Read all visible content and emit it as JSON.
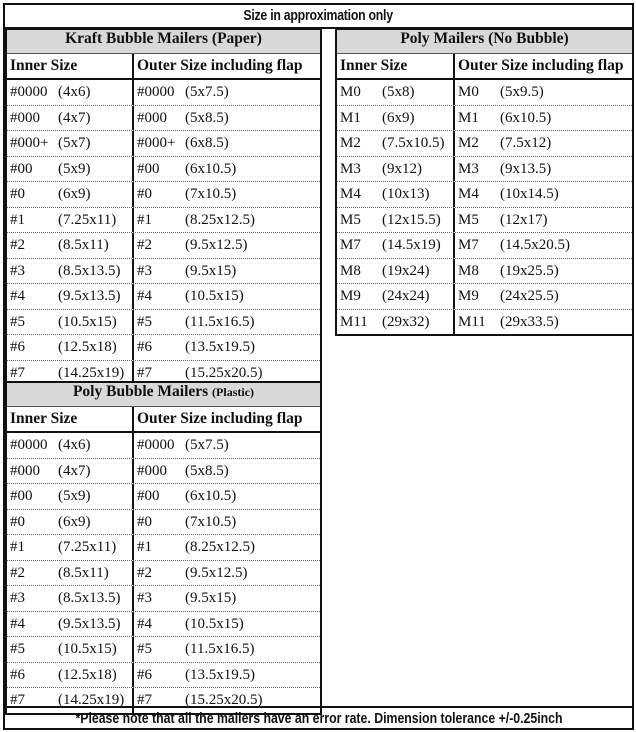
{
  "title": "Size in approximation only",
  "footer": "*Please note that all the mailers have an error rate. Dimension tolerance +/-0.25inch",
  "kraft": {
    "title": "Kraft Bubble Mailers (Paper)",
    "title_note": "",
    "inner_header": "Inner Size",
    "outer_header": "Outer Size including flap",
    "rows": [
      {
        "inner_code": "#0000",
        "inner_dim": "(4x6)",
        "outer_code": "#0000",
        "outer_dim": "(5x7.5)"
      },
      {
        "inner_code": "#000",
        "inner_dim": "(4x7)",
        "outer_code": "#000",
        "outer_dim": "(5x8.5)"
      },
      {
        "inner_code": "#000+",
        "inner_dim": "(5x7)",
        "outer_code": "#000+",
        "outer_dim": "(6x8.5)"
      },
      {
        "inner_code": "#00",
        "inner_dim": "(5x9)",
        "outer_code": "#00",
        "outer_dim": "(6x10.5)"
      },
      {
        "inner_code": "#0",
        "inner_dim": "(6x9)",
        "outer_code": "#0",
        "outer_dim": "(7x10.5)"
      },
      {
        "inner_code": "#1",
        "inner_dim": "(7.25x11)",
        "outer_code": "#1",
        "outer_dim": "(8.25x12.5)"
      },
      {
        "inner_code": "#2",
        "inner_dim": "(8.5x11)",
        "outer_code": "#2",
        "outer_dim": "(9.5x12.5)"
      },
      {
        "inner_code": "#3",
        "inner_dim": "(8.5x13.5)",
        "outer_code": "#3",
        "outer_dim": "(9.5x15)"
      },
      {
        "inner_code": "#4",
        "inner_dim": "(9.5x13.5)",
        "outer_code": "#4",
        "outer_dim": "(10.5x15)"
      },
      {
        "inner_code": "#5",
        "inner_dim": "(10.5x15)",
        "outer_code": "#5",
        "outer_dim": "(11.5x16.5)"
      },
      {
        "inner_code": "#6",
        "inner_dim": "(12.5x18)",
        "outer_code": "#6",
        "outer_dim": "(13.5x19.5)"
      },
      {
        "inner_code": "#7",
        "inner_dim": "(14.25x19)",
        "outer_code": "#7",
        "outer_dim": "(15.25x20.5)"
      }
    ]
  },
  "poly": {
    "title": "Poly Mailers (No Bubble)",
    "title_note": "",
    "inner_header": "Inner Size",
    "outer_header": "Outer Size including flap",
    "rows": [
      {
        "inner_code": "M0",
        "inner_dim": "(5x8)",
        "outer_code": "M0",
        "outer_dim": "(5x9.5)"
      },
      {
        "inner_code": "M1",
        "inner_dim": "(6x9)",
        "outer_code": "M1",
        "outer_dim": "(6x10.5)"
      },
      {
        "inner_code": "M2",
        "inner_dim": "(7.5x10.5)",
        "outer_code": "M2",
        "outer_dim": "(7.5x12)"
      },
      {
        "inner_code": "M3",
        "inner_dim": "(9x12)",
        "outer_code": "M3",
        "outer_dim": "(9x13.5)"
      },
      {
        "inner_code": "M4",
        "inner_dim": "(10x13)",
        "outer_code": "M4",
        "outer_dim": "(10x14.5)"
      },
      {
        "inner_code": "M5",
        "inner_dim": "(12x15.5)",
        "outer_code": "M5",
        "outer_dim": "(12x17)"
      },
      {
        "inner_code": "M7",
        "inner_dim": "(14.5x19)",
        "outer_code": "M7",
        "outer_dim": "(14.5x20.5)"
      },
      {
        "inner_code": "M8",
        "inner_dim": "(19x24)",
        "outer_code": "M8",
        "outer_dim": "(19x25.5)"
      },
      {
        "inner_code": "M9",
        "inner_dim": "(24x24)",
        "outer_code": "M9",
        "outer_dim": "(24x25.5)"
      },
      {
        "inner_code": "M11",
        "inner_dim": "(29x32)",
        "outer_code": "M11",
        "outer_dim": "(29x33.5)"
      }
    ]
  },
  "polybubble": {
    "title": "Poly Bubble Mailers",
    "title_note": "(Plastic)",
    "inner_header": "Inner Size",
    "outer_header": "Outer Size including flap",
    "rows": [
      {
        "inner_code": "#0000",
        "inner_dim": "(4x6)",
        "outer_code": "#0000",
        "outer_dim": "(5x7.5)"
      },
      {
        "inner_code": "#000",
        "inner_dim": "(4x7)",
        "outer_code": "#000",
        "outer_dim": "(5x8.5)"
      },
      {
        "inner_code": "#00",
        "inner_dim": "(5x9)",
        "outer_code": "#00",
        "outer_dim": "(6x10.5)"
      },
      {
        "inner_code": "#0",
        "inner_dim": "(6x9)",
        "outer_code": "#0",
        "outer_dim": "(7x10.5)"
      },
      {
        "inner_code": "#1",
        "inner_dim": "(7.25x11)",
        "outer_code": "#1",
        "outer_dim": "(8.25x12.5)"
      },
      {
        "inner_code": "#2",
        "inner_dim": "(8.5x11)",
        "outer_code": "#2",
        "outer_dim": "(9.5x12.5)"
      },
      {
        "inner_code": "#3",
        "inner_dim": "(8.5x13.5)",
        "outer_code": "#3",
        "outer_dim": "(9.5x15)"
      },
      {
        "inner_code": "#4",
        "inner_dim": "(9.5x13.5)",
        "outer_code": "#4",
        "outer_dim": "(10.5x15)"
      },
      {
        "inner_code": "#5",
        "inner_dim": "(10.5x15)",
        "outer_code": "#5",
        "outer_dim": "(11.5x16.5)"
      },
      {
        "inner_code": "#6",
        "inner_dim": "(12.5x18)",
        "outer_code": "#6",
        "outer_dim": "(13.5x19.5)"
      },
      {
        "inner_code": "#7",
        "inner_dim": "(14.25x19)",
        "outer_code": "#7",
        "outer_dim": "(15.25x20.5)"
      }
    ]
  }
}
